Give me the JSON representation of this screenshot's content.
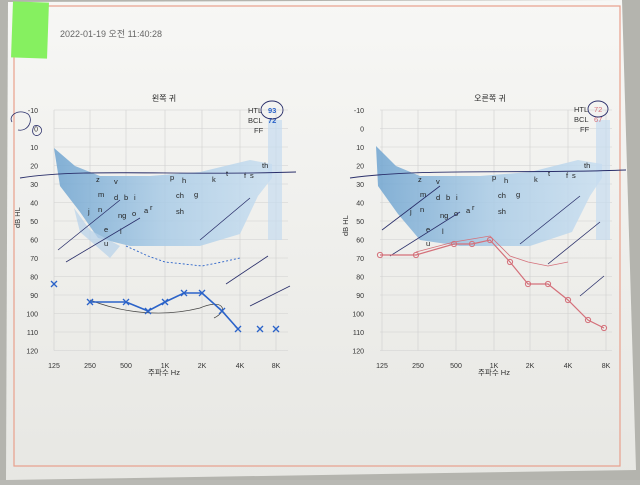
{
  "timestamp": "2022-01-19 오전 11:40:28",
  "left": {
    "title": "왼쪽 귀",
    "htl_label": "HTL",
    "htl_value": "93",
    "bcl_label": "BCL",
    "bcl_value": "72",
    "ff_label": "FF",
    "y_axis_label": "dB HL",
    "x_axis_label": "주파수 Hz"
  },
  "right": {
    "title": "오른쪽 귀",
    "htl_label": "HTL",
    "htl_value": "72",
    "bcl_label": "BCL",
    "bcl_value": "67",
    "ff_label": "FF",
    "y_axis_label": "dB HL",
    "x_axis_label": "주파수 Hz"
  },
  "y_ticks": [
    "-10",
    "0",
    "10",
    "20",
    "30",
    "40",
    "50",
    "60",
    "70",
    "80",
    "90",
    "100",
    "110",
    "120"
  ],
  "x_ticks": [
    "125",
    "250",
    "500",
    "1K",
    "2K",
    "4K",
    "8K"
  ],
  "speech_sounds": [
    "z",
    "v",
    "p",
    "h",
    "k",
    "t",
    "f",
    "s",
    "th",
    "m",
    "d",
    "b",
    "i",
    "ch",
    "g",
    "j",
    "n",
    "ng",
    "o",
    "a",
    "r",
    "sh",
    "e",
    "l",
    "u"
  ],
  "colors": {
    "left_ear": "#2b63c9",
    "right_ear": "#d4707a",
    "banana": "#9cc2df",
    "paper": "#f2f2f2",
    "sticky_note": "#86f060",
    "pen": "#2a2f6a",
    "border": "#e9a08c"
  }
}
